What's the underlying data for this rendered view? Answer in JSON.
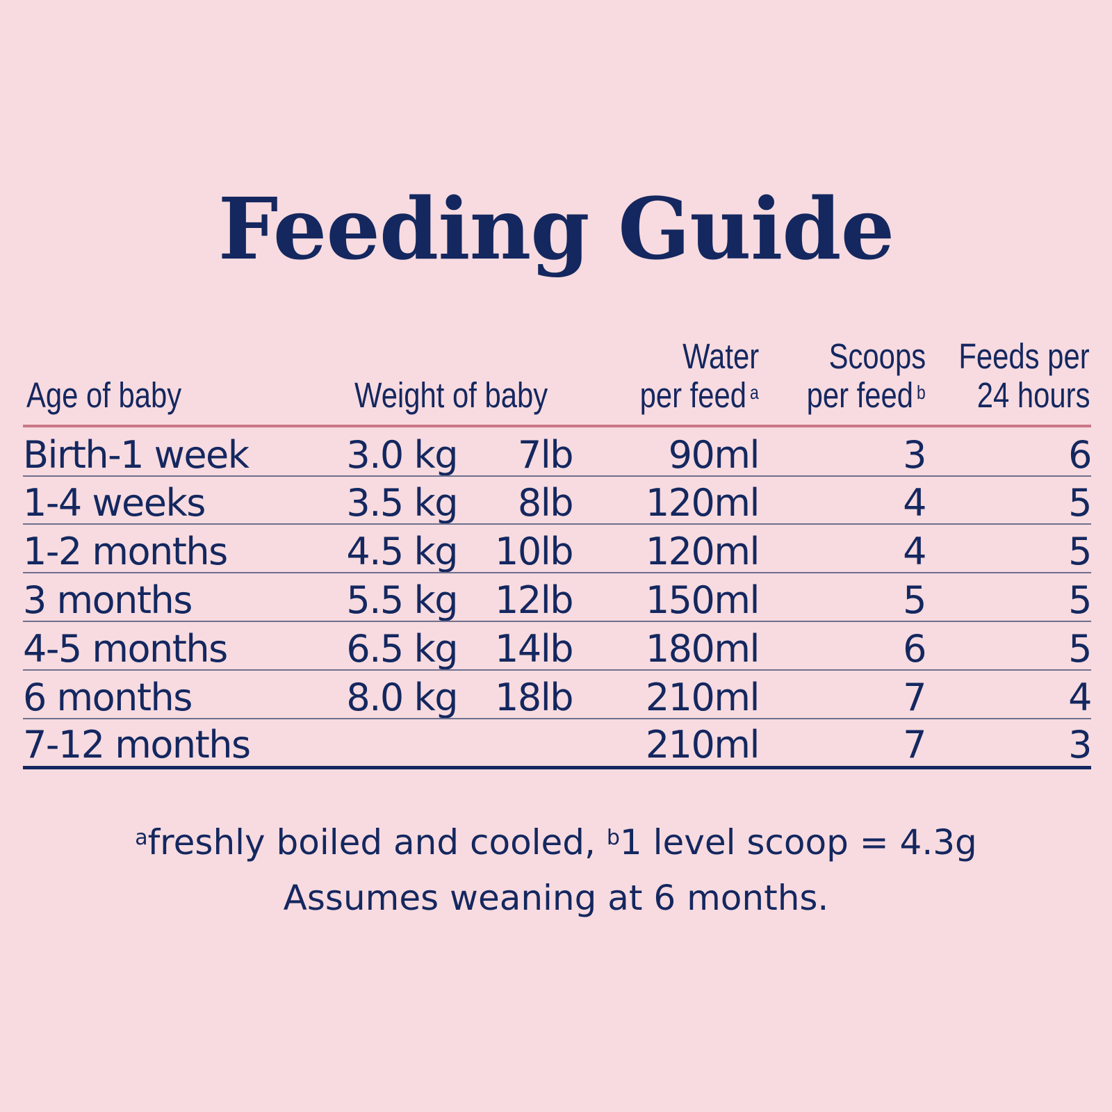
{
  "title": "Feeding Guide",
  "table": {
    "headers": {
      "age": "Age of baby",
      "weight": "Weight of baby",
      "water_line1": "Water",
      "water_line2": "per feed",
      "water_mark": "a",
      "scoops_line1": "Scoops",
      "scoops_line2": "per feed",
      "scoops_mark": "b",
      "feeds_line1": "Feeds per",
      "feeds_line2": "24 hours"
    },
    "rows": [
      {
        "age": "Birth-1 week",
        "kg": "3.0 kg",
        "lb": "7lb",
        "water": "90ml",
        "scoops": "3",
        "feeds": "6"
      },
      {
        "age": "1-4 weeks",
        "kg": "3.5 kg",
        "lb": "8lb",
        "water": "120ml",
        "scoops": "4",
        "feeds": "5"
      },
      {
        "age": "1-2 months",
        "kg": "4.5 kg",
        "lb": "10lb",
        "water": "120ml",
        "scoops": "4",
        "feeds": "5"
      },
      {
        "age": "3 months",
        "kg": "5.5 kg",
        "lb": "12lb",
        "water": "150ml",
        "scoops": "5",
        "feeds": "5"
      },
      {
        "age": "4-5 months",
        "kg": "6.5 kg",
        "lb": "14lb",
        "water": "180ml",
        "scoops": "6",
        "feeds": "5"
      },
      {
        "age": "6 months",
        "kg": "8.0 kg",
        "lb": "18lb",
        "water": "210ml",
        "scoops": "7",
        "feeds": "4"
      },
      {
        "age": "7-12 months",
        "kg": "",
        "lb": "",
        "water": "210ml",
        "scoops": "7",
        "feeds": "3"
      }
    ]
  },
  "footnotes": {
    "mark_a": "a",
    "text_a": "freshly boiled and cooled, ",
    "mark_b": "b",
    "text_b": "1 level scoop = 4.3g",
    "line2": "Assumes weaning at 6 months."
  },
  "colors": {
    "background": "#f7dbe0",
    "text": "#14275f",
    "header_rule": "#c97787",
    "row_rule": "#6e6f8e"
  }
}
